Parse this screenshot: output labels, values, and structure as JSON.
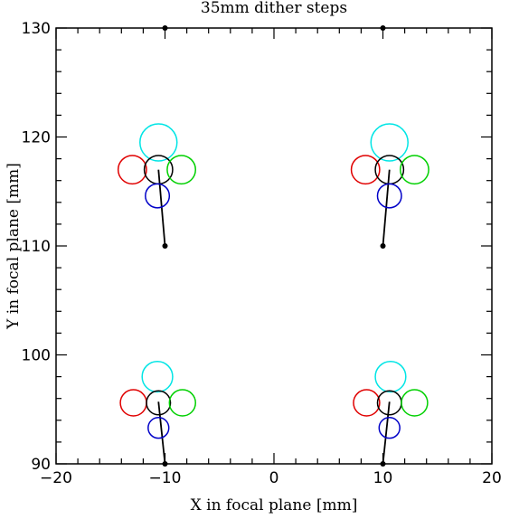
{
  "chart_data": {
    "type": "scatter",
    "title": "35mm dither steps",
    "xlabel": "X in focal plane [mm]",
    "ylabel": "Y in focal plane [mm]",
    "xlim": [
      -20,
      20
    ],
    "ylim": [
      90,
      130
    ],
    "xticks": [
      -20,
      -10,
      0,
      10,
      20
    ],
    "yticks": [
      90,
      100,
      110,
      120,
      130
    ],
    "xtick_labels": [
      "−20",
      "−10",
      "0",
      "10",
      "20"
    ],
    "ytick_labels": [
      "90",
      "100",
      "110",
      "120",
      "130"
    ],
    "minor_step": 2,
    "grid": false,
    "legend": "none",
    "points": [
      {
        "x": -10,
        "y": 130
      },
      {
        "x": 10,
        "y": 130
      },
      {
        "x": -10,
        "y": 110
      },
      {
        "x": 10,
        "y": 110
      },
      {
        "x": -10,
        "y": 90
      },
      {
        "x": 10,
        "y": 90
      }
    ],
    "segments": [
      {
        "from": [
          -10,
          110
        ],
        "to": [
          -10.6,
          117
        ]
      },
      {
        "from": [
          10,
          110
        ],
        "to": [
          10.6,
          117
        ]
      },
      {
        "from": [
          -10,
          90
        ],
        "to": [
          -10.6,
          95.7
        ]
      },
      {
        "from": [
          10,
          90
        ],
        "to": [
          10.6,
          95.7
        ]
      }
    ],
    "circle_groups": [
      {
        "circles": [
          {
            "x": -10.6,
            "y": 119.5,
            "r": 1.7,
            "color": "#00e5e5"
          },
          {
            "x": -13,
            "y": 117,
            "r": 1.3,
            "color": "#e00000"
          },
          {
            "x": -10.6,
            "y": 117,
            "r": 1.3,
            "color": "#000000"
          },
          {
            "x": -8.5,
            "y": 117,
            "r": 1.3,
            "color": "#00d000"
          },
          {
            "x": -10.7,
            "y": 114.6,
            "r": 1.1,
            "color": "#0000c8"
          }
        ]
      },
      {
        "circles": [
          {
            "x": 10.6,
            "y": 119.5,
            "r": 1.7,
            "color": "#00e5e5"
          },
          {
            "x": 8.4,
            "y": 117,
            "r": 1.3,
            "color": "#e00000"
          },
          {
            "x": 10.6,
            "y": 117,
            "r": 1.3,
            "color": "#000000"
          },
          {
            "x": 12.9,
            "y": 117,
            "r": 1.3,
            "color": "#00d000"
          },
          {
            "x": 10.6,
            "y": 114.6,
            "r": 1.1,
            "color": "#0000c8"
          }
        ]
      },
      {
        "circles": [
          {
            "x": -10.7,
            "y": 98,
            "r": 1.4,
            "color": "#00e5e5"
          },
          {
            "x": -12.9,
            "y": 95.6,
            "r": 1.2,
            "color": "#e00000"
          },
          {
            "x": -10.6,
            "y": 95.6,
            "r": 1.1,
            "color": "#000000"
          },
          {
            "x": -8.4,
            "y": 95.6,
            "r": 1.2,
            "color": "#00d000"
          },
          {
            "x": -10.6,
            "y": 93.3,
            "r": 0.95,
            "color": "#0000c8"
          }
        ]
      },
      {
        "circles": [
          {
            "x": 10.7,
            "y": 98,
            "r": 1.4,
            "color": "#00e5e5"
          },
          {
            "x": 8.5,
            "y": 95.6,
            "r": 1.2,
            "color": "#e00000"
          },
          {
            "x": 10.6,
            "y": 95.6,
            "r": 1.1,
            "color": "#000000"
          },
          {
            "x": 12.9,
            "y": 95.6,
            "r": 1.2,
            "color": "#00d000"
          },
          {
            "x": 10.6,
            "y": 93.3,
            "r": 0.95,
            "color": "#0000c8"
          }
        ]
      }
    ]
  }
}
